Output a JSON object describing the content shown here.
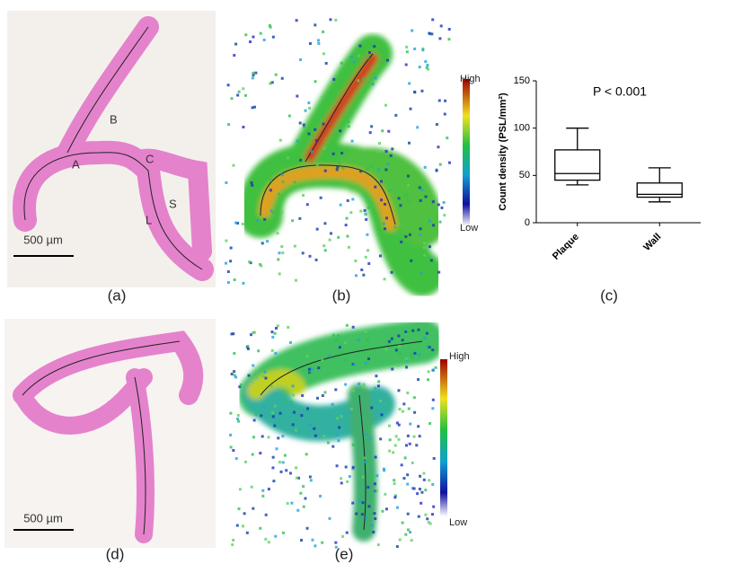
{
  "panels": {
    "a": {
      "label": "(a)",
      "regions": [
        "A",
        "B",
        "C",
        "S",
        "L"
      ],
      "scale_bar": "500 µm"
    },
    "b": {
      "label": "(b)",
      "colorbar": {
        "high": "High",
        "low": "Low"
      }
    },
    "d": {
      "label": "(d)",
      "scale_bar": "500 µm"
    },
    "e": {
      "label": "(e)",
      "colorbar": {
        "high": "High",
        "low": "Low"
      }
    },
    "c": {
      "label": "(c)"
    }
  },
  "chart_data": {
    "type": "box",
    "ylabel": "Count density (PSL/mm²)",
    "annotation": "P < 0.001",
    "categories": [
      "Plaque",
      "Wall"
    ],
    "boxes": [
      {
        "min": 40,
        "q1": 45,
        "median": 52,
        "q3": 77,
        "max": 100
      },
      {
        "min": 22,
        "q1": 27,
        "median": 30,
        "q3": 42,
        "max": 58
      }
    ],
    "color": "#000000",
    "ylim": [
      0,
      150
    ],
    "yticks": [
      0,
      50,
      100,
      150
    ]
  }
}
